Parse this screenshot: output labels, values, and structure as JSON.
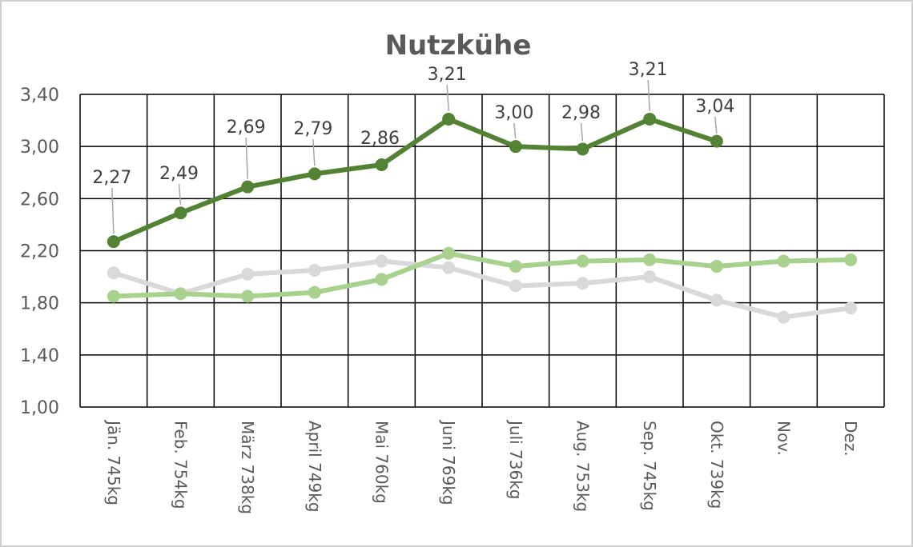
{
  "chart_data": {
    "type": "line",
    "title": "Nutzkühe",
    "xlabel": "",
    "ylabel": "",
    "ylim": [
      1.0,
      3.4
    ],
    "yticks": [
      "1,00",
      "1,40",
      "1,80",
      "2,20",
      "2,60",
      "3,00",
      "3,40"
    ],
    "grid": true,
    "categories": [
      "Jän.  745kg",
      "Feb.  754kg",
      "März 738kg",
      "April  749kg",
      "Mai   760kg",
      "Juni   769kg",
      "Juli   736kg",
      "Aug.  753kg",
      "Sep.  745kg",
      "Okt.  739kg",
      "Nov.",
      "Dez."
    ],
    "series": [
      {
        "color": "#548235",
        "values": [
          2.27,
          2.49,
          2.69,
          2.79,
          2.86,
          3.21,
          3.0,
          2.98,
          3.21,
          3.04,
          null,
          null
        ],
        "labels": [
          "2,27",
          "2,49",
          "2,69",
          "2,79",
          "2,86",
          "3,21",
          "3,00",
          "2,98",
          "3,21",
          "3,04",
          "",
          ""
        ]
      },
      {
        "color": "#a9d18e",
        "values": [
          1.85,
          1.87,
          1.85,
          1.88,
          1.98,
          2.18,
          2.08,
          2.12,
          2.13,
          2.08,
          2.12,
          2.13
        ]
      },
      {
        "color": "#d9d9d9",
        "values": [
          2.03,
          1.87,
          2.02,
          2.05,
          2.12,
          2.07,
          1.93,
          1.95,
          2.0,
          1.82,
          1.69,
          1.76
        ]
      }
    ]
  }
}
